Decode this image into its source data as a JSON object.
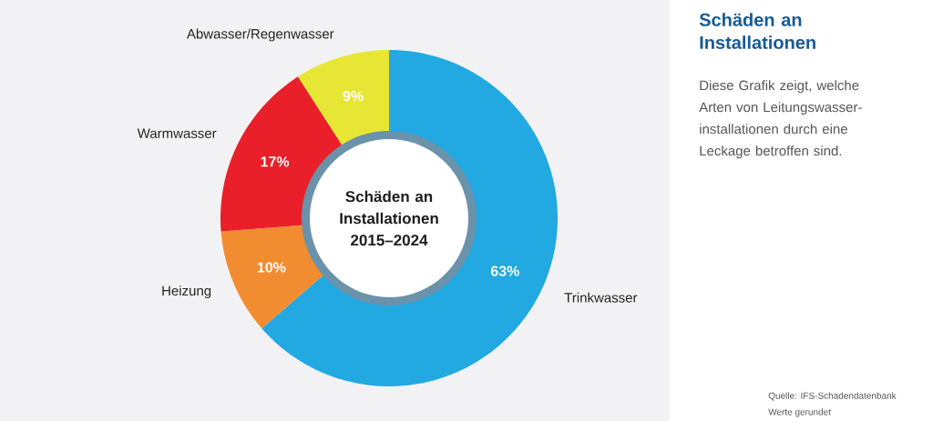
{
  "chart_data": {
    "type": "donut",
    "title": "Schäden an Installationen",
    "subtitle": "Diese Grafik zeigt, welche Arten von Leitungswasser-installationen durch eine Leckage betroffen sind.",
    "categories": [
      "Trinkwasser",
      "Heizung",
      "Warmwasser",
      "Abwasser/Regenwasser"
    ],
    "values": [
      63,
      10,
      17,
      9
    ],
    "colors": [
      "#22a9e1",
      "#f28c30",
      "#e9202a",
      "#e8e634"
    ],
    "value_labels": [
      "63%",
      "10%",
      "17%",
      "9%"
    ],
    "annotations": [
      "Schäden an Installationen 2015–2024",
      "Quelle: IFS-Schadendatenbank",
      "Werte gerundet"
    ]
  }
}
